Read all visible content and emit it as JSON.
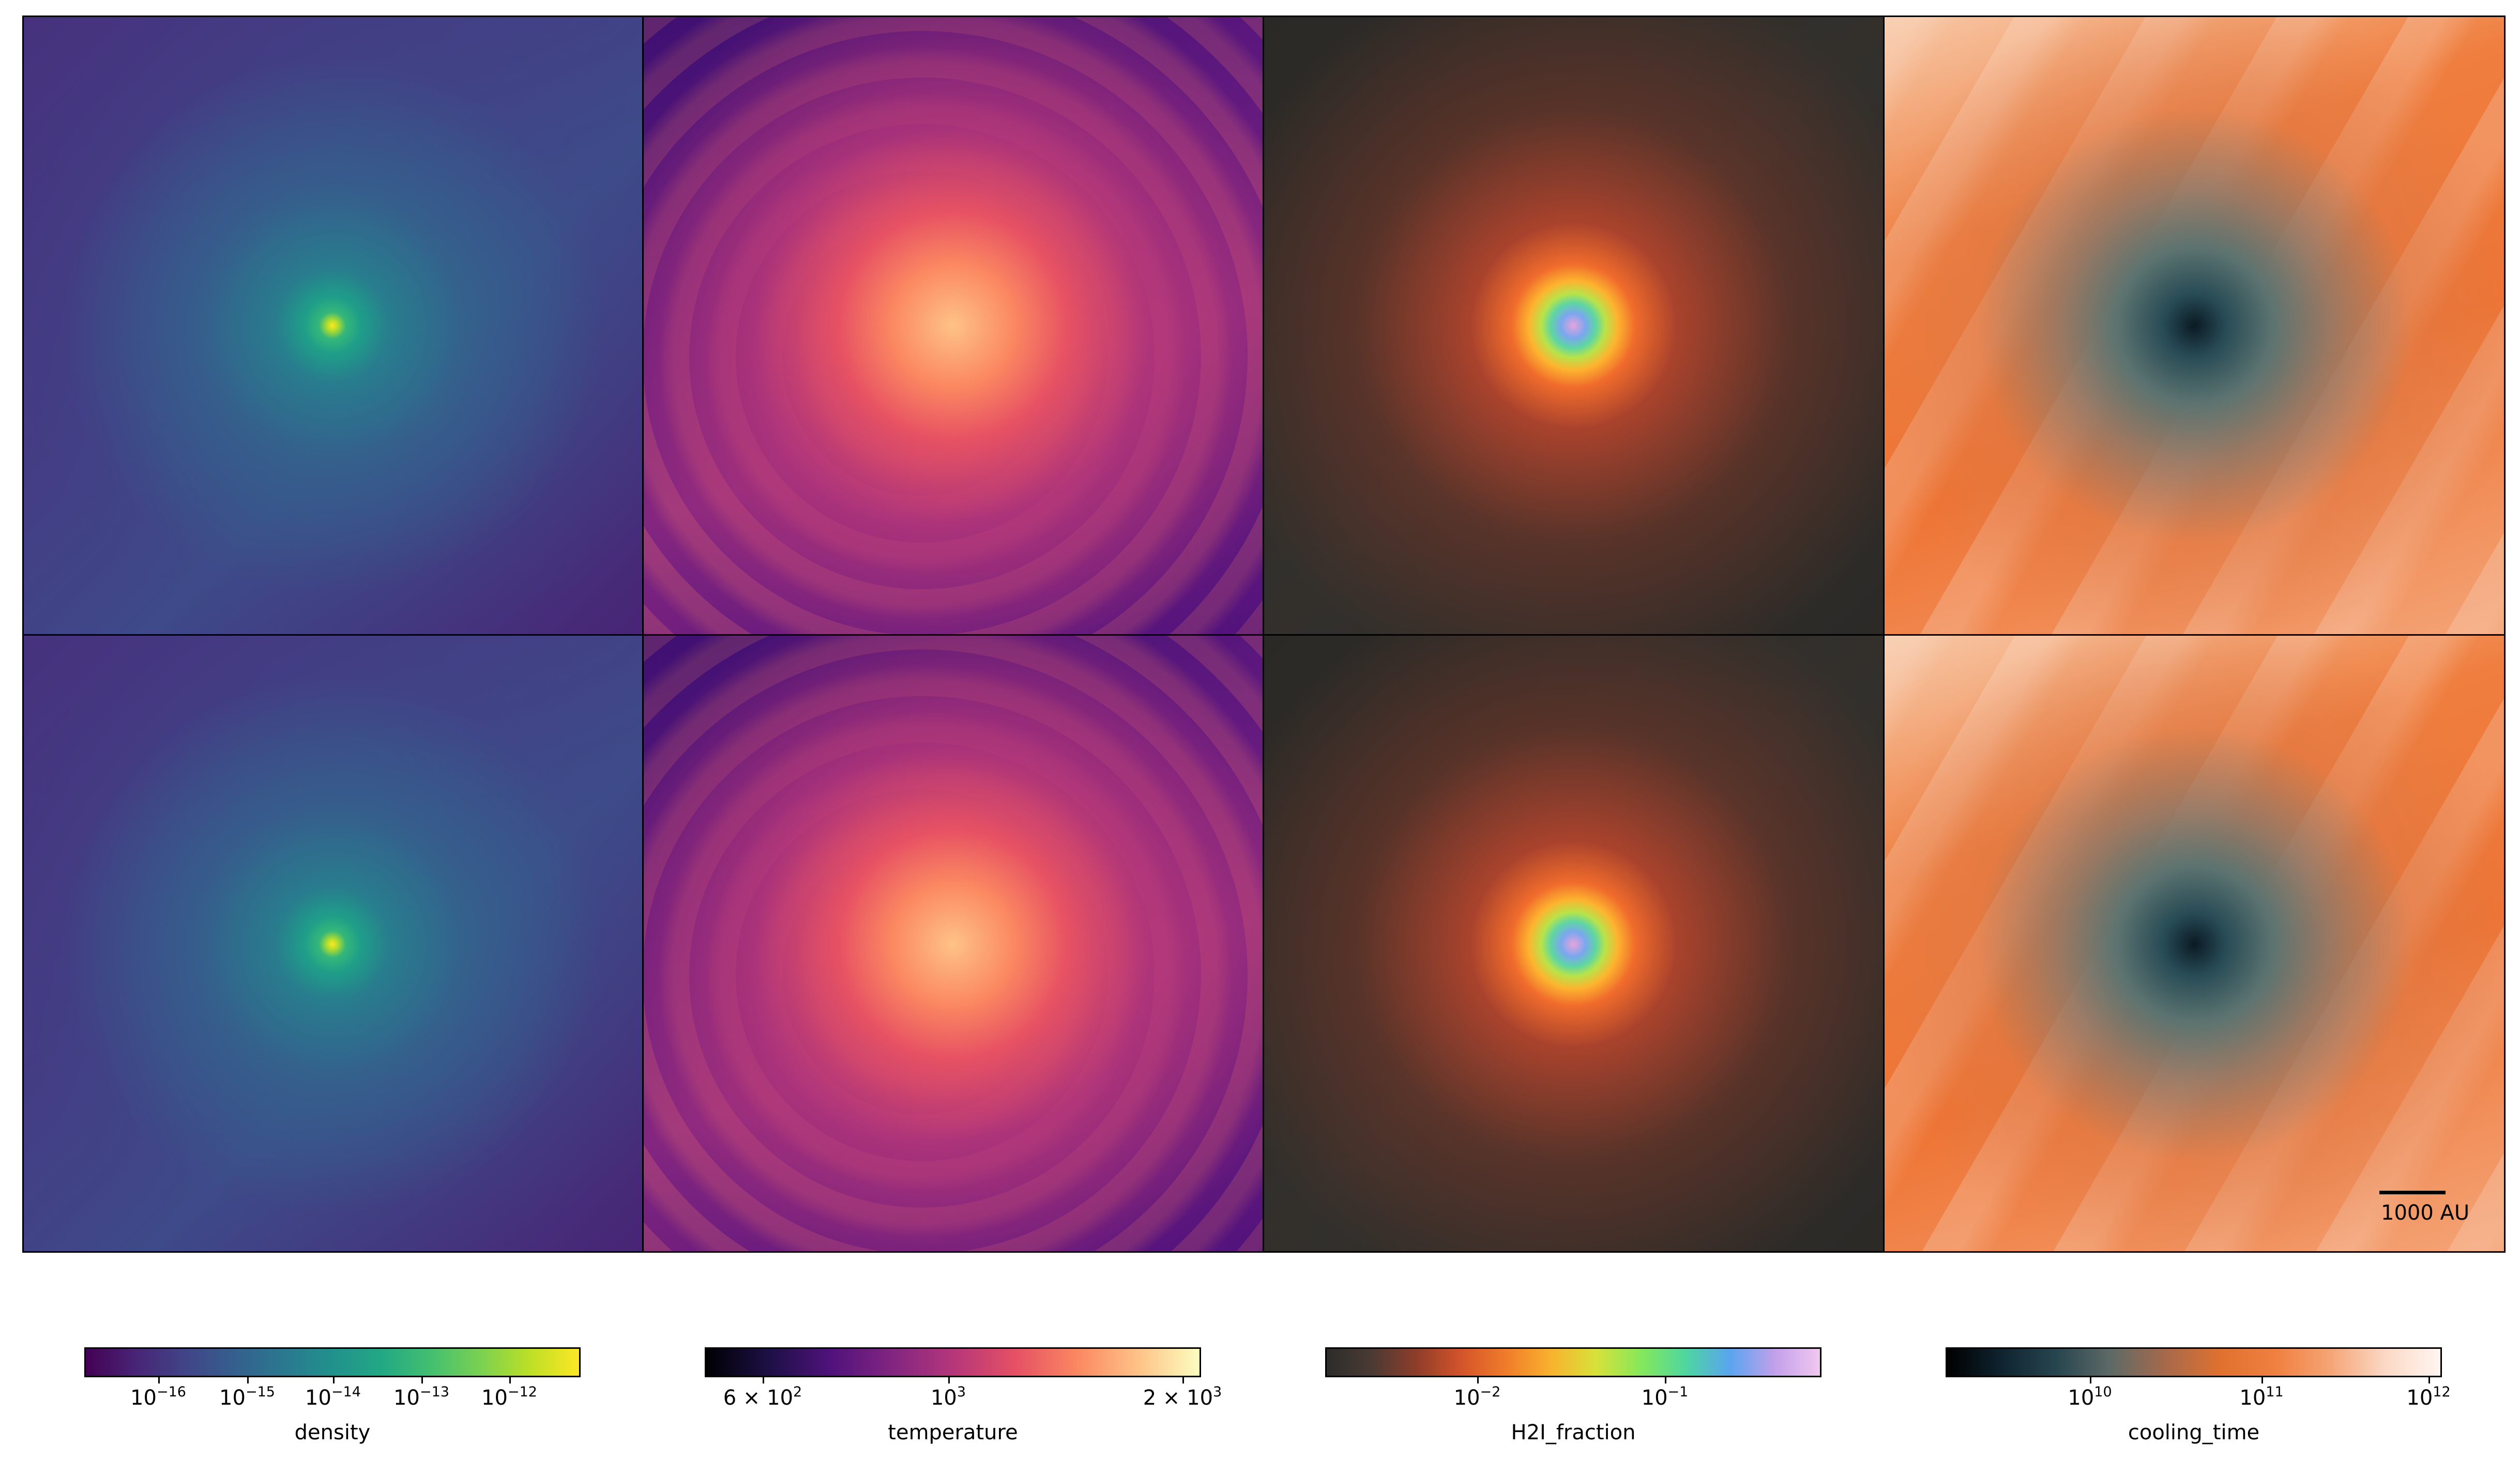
{
  "figure": {
    "scale_bar_label": "1000 AU",
    "fields": [
      "density",
      "temperature",
      "H2I_fraction",
      "cooling_time"
    ]
  },
  "colorbars": [
    {
      "label": "density",
      "ticks": [
        {
          "base": "10",
          "exp": "−16"
        },
        {
          "base": "10",
          "exp": "−15"
        },
        {
          "base": "10",
          "exp": "−14"
        },
        {
          "base": "10",
          "exp": "−13"
        },
        {
          "base": "10",
          "exp": "−12"
        }
      ]
    },
    {
      "label": "temperature",
      "ticks": [
        {
          "base": "6 × 10",
          "exp": "2"
        },
        {
          "base": "10",
          "exp": "3"
        },
        {
          "base": "2 × 10",
          "exp": "3"
        }
      ]
    },
    {
      "label": "H2I_fraction",
      "ticks": [
        {
          "base": "10",
          "exp": "−2"
        },
        {
          "base": "10",
          "exp": "−1"
        }
      ]
    },
    {
      "label": "cooling_time",
      "ticks": [
        {
          "base": "10",
          "exp": "10"
        },
        {
          "base": "10",
          "exp": "11"
        },
        {
          "base": "10",
          "exp": "12"
        }
      ]
    }
  ],
  "colors": {
    "density_cmap": "viridis",
    "temperature_cmap": "magma",
    "h2_cmap": "custom-dark-to-pastel",
    "cooling_cmap": "orange-white"
  }
}
